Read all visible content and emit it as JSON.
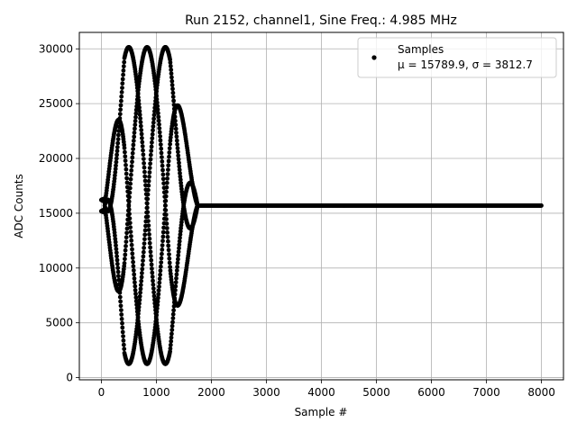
{
  "chart_data": {
    "type": "scatter",
    "title": "Run 2152, channel1, Sine Freq.: 4.985 MHz",
    "xlabel": "Sample #",
    "ylabel": "ADC Counts",
    "xlim": [
      -400,
      8400
    ],
    "ylim": [
      -200,
      31500
    ],
    "xticks": [
      0,
      1000,
      2000,
      3000,
      4000,
      5000,
      6000,
      7000,
      8000
    ],
    "yticks": [
      0,
      5000,
      10000,
      15000,
      20000,
      25000,
      30000
    ],
    "xtick_labels": [
      "0",
      "1000",
      "2000",
      "3000",
      "4000",
      "5000",
      "6000",
      "7000",
      "8000"
    ],
    "ytick_labels": [
      "0",
      "5000",
      "10000",
      "15000",
      "20000",
      "25000",
      "30000"
    ],
    "grid": true,
    "legend_position": "top-right",
    "marker_color": "#000000",
    "series": [
      {
        "name": "Samples",
        "legend_stats": "μ = 15789.9, σ = 3812.7",
        "description": "sine burst from sample 0 to ~1600 with envelope rising to ~14400 counts amplitude by ~400, sustained until ~1250, decaying to baseline by ~1750; flat at ~15700 from ~1750 to 8000",
        "baseline": 15700,
        "peak_max": 30200,
        "peak_min": 1300,
        "burst_end": 1750,
        "x_max": 8000
      }
    ]
  }
}
